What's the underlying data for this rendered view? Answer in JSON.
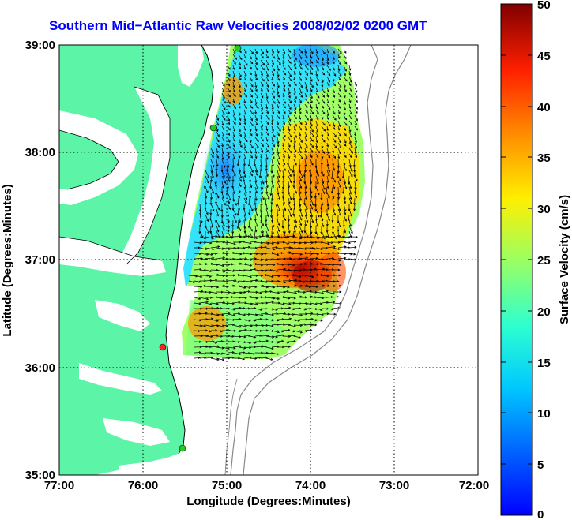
{
  "title": "Southern Mid−Atlantic Raw Velocities 2008/02/02 0200 GMT",
  "xlabel": "Longitude (Degrees:Minutes)",
  "ylabel": "Latitude (Degrees:Minutes)",
  "colorbar_label": "Surface Velocity (cm/s)",
  "x_ticks": [
    "77:00",
    "76:00",
    "75:00",
    "74:00",
    "73:00",
    "72:00"
  ],
  "y_ticks": [
    "39:00",
    "38:00",
    "37:00",
    "36:00",
    "35:00"
  ],
  "colorbar_ticks": [
    "0",
    "5",
    "10",
    "15",
    "20",
    "25",
    "30",
    "35",
    "40",
    "45",
    "50"
  ],
  "colors": {
    "land": "#5cf5a8",
    "grid": "#000000",
    "title": "#0000ff",
    "site_green": "#22cc22",
    "site_red": "#ff2020"
  },
  "chart_data": {
    "type": "heatmap",
    "xlim": [
      -77,
      -72
    ],
    "ylim": [
      35,
      39
    ],
    "clim": [
      0,
      50
    ],
    "grid": true,
    "colormap": "jet",
    "sites": [
      {
        "lon": -74.87,
        "lat": 38.97,
        "status": "green"
      },
      {
        "lon": -75.15,
        "lat": 38.22,
        "status": "green"
      },
      {
        "lon": -75.74,
        "lat": 36.19,
        "status": "red"
      },
      {
        "lon": -75.52,
        "lat": 35.26,
        "status": "green"
      }
    ]
  }
}
